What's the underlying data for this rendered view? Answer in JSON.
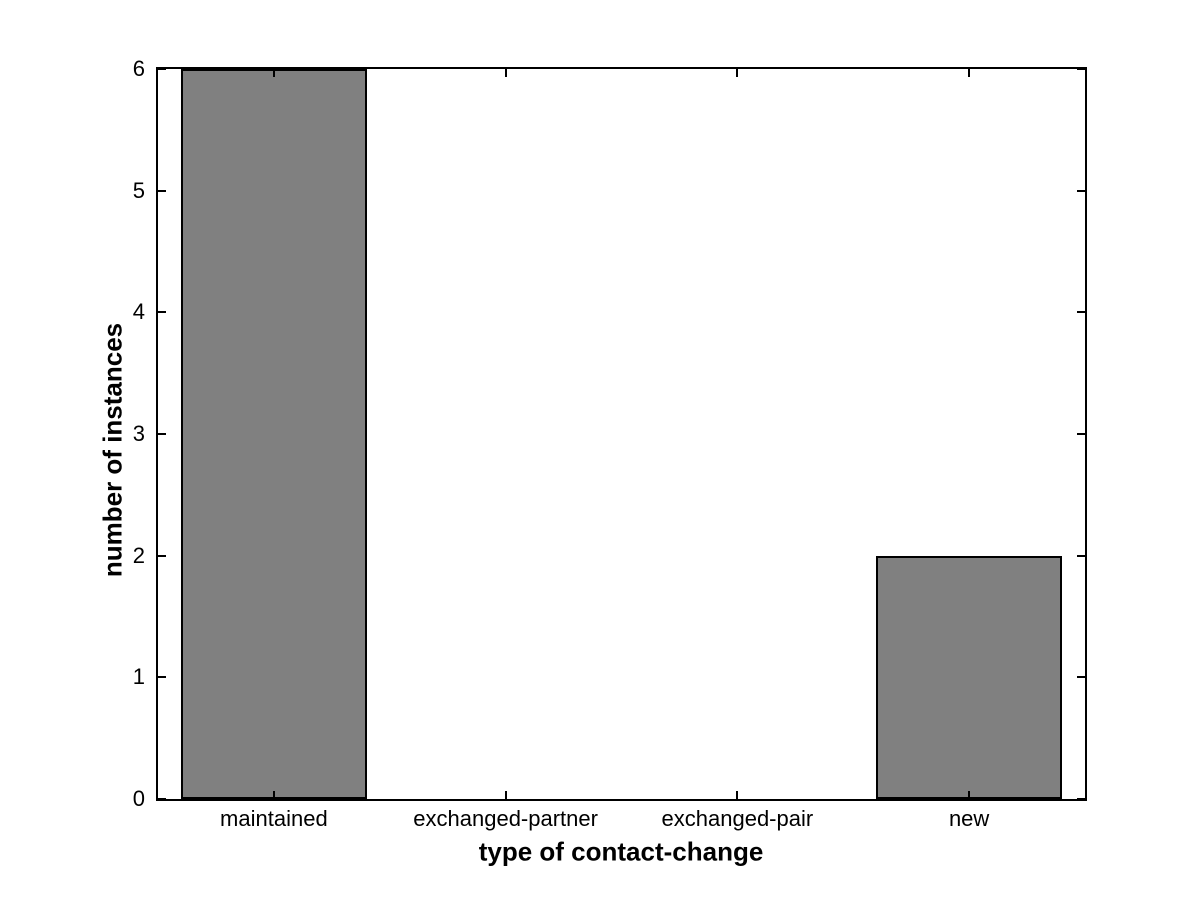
{
  "chart_data": {
    "type": "bar",
    "title": "",
    "xlabel": "type of contact-change",
    "ylabel": "number of instances",
    "categories": [
      "maintained",
      "exchanged-partner",
      "exchanged-pair",
      "new"
    ],
    "values": [
      6,
      0,
      0,
      2
    ],
    "ylim": [
      0,
      6
    ],
    "yticks": [
      0,
      1,
      2,
      3,
      4,
      5,
      6
    ],
    "bar_width_fraction": 0.8,
    "bar_color": "#808080",
    "bar_edge_color": "#000000",
    "axis_color": "#000000",
    "background_color": "#ffffff",
    "grid": false,
    "legend": "none"
  }
}
